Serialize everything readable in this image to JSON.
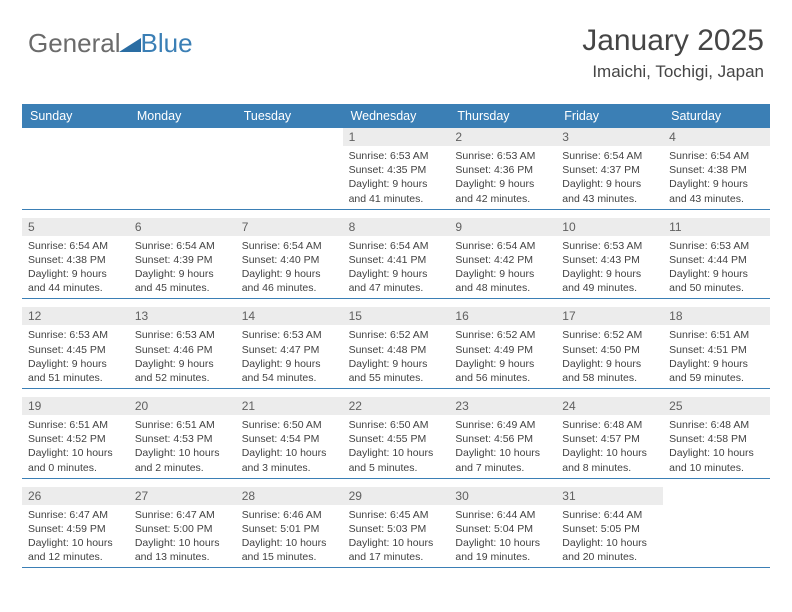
{
  "logo": {
    "text_gray": "General",
    "text_blue": "Blue"
  },
  "title": {
    "month": "January 2025",
    "location": "Imaichi, Tochigi, Japan"
  },
  "colors": {
    "header_bg": "#3b7fb5",
    "header_text": "#ffffff",
    "daynum_bg": "#ececec",
    "daynum_text": "#606060",
    "body_text": "#424242",
    "rule": "#3b7fb5",
    "logo_gray": "#6b6b6b",
    "logo_blue": "#3b7fb5"
  },
  "day_names": [
    "Sunday",
    "Monday",
    "Tuesday",
    "Wednesday",
    "Thursday",
    "Friday",
    "Saturday"
  ],
  "weeks": [
    [
      {
        "n": "",
        "sr": "",
        "ss": "",
        "dl": ""
      },
      {
        "n": "",
        "sr": "",
        "ss": "",
        "dl": ""
      },
      {
        "n": "",
        "sr": "",
        "ss": "",
        "dl": ""
      },
      {
        "n": "1",
        "sr": "6:53 AM",
        "ss": "4:35 PM",
        "dl": "9 hours and 41 minutes."
      },
      {
        "n": "2",
        "sr": "6:53 AM",
        "ss": "4:36 PM",
        "dl": "9 hours and 42 minutes."
      },
      {
        "n": "3",
        "sr": "6:54 AM",
        "ss": "4:37 PM",
        "dl": "9 hours and 43 minutes."
      },
      {
        "n": "4",
        "sr": "6:54 AM",
        "ss": "4:38 PM",
        "dl": "9 hours and 43 minutes."
      }
    ],
    [
      {
        "n": "5",
        "sr": "6:54 AM",
        "ss": "4:38 PM",
        "dl": "9 hours and 44 minutes."
      },
      {
        "n": "6",
        "sr": "6:54 AM",
        "ss": "4:39 PM",
        "dl": "9 hours and 45 minutes."
      },
      {
        "n": "7",
        "sr": "6:54 AM",
        "ss": "4:40 PM",
        "dl": "9 hours and 46 minutes."
      },
      {
        "n": "8",
        "sr": "6:54 AM",
        "ss": "4:41 PM",
        "dl": "9 hours and 47 minutes."
      },
      {
        "n": "9",
        "sr": "6:54 AM",
        "ss": "4:42 PM",
        "dl": "9 hours and 48 minutes."
      },
      {
        "n": "10",
        "sr": "6:53 AM",
        "ss": "4:43 PM",
        "dl": "9 hours and 49 minutes."
      },
      {
        "n": "11",
        "sr": "6:53 AM",
        "ss": "4:44 PM",
        "dl": "9 hours and 50 minutes."
      }
    ],
    [
      {
        "n": "12",
        "sr": "6:53 AM",
        "ss": "4:45 PM",
        "dl": "9 hours and 51 minutes."
      },
      {
        "n": "13",
        "sr": "6:53 AM",
        "ss": "4:46 PM",
        "dl": "9 hours and 52 minutes."
      },
      {
        "n": "14",
        "sr": "6:53 AM",
        "ss": "4:47 PM",
        "dl": "9 hours and 54 minutes."
      },
      {
        "n": "15",
        "sr": "6:52 AM",
        "ss": "4:48 PM",
        "dl": "9 hours and 55 minutes."
      },
      {
        "n": "16",
        "sr": "6:52 AM",
        "ss": "4:49 PM",
        "dl": "9 hours and 56 minutes."
      },
      {
        "n": "17",
        "sr": "6:52 AM",
        "ss": "4:50 PM",
        "dl": "9 hours and 58 minutes."
      },
      {
        "n": "18",
        "sr": "6:51 AM",
        "ss": "4:51 PM",
        "dl": "9 hours and 59 minutes."
      }
    ],
    [
      {
        "n": "19",
        "sr": "6:51 AM",
        "ss": "4:52 PM",
        "dl": "10 hours and 0 minutes."
      },
      {
        "n": "20",
        "sr": "6:51 AM",
        "ss": "4:53 PM",
        "dl": "10 hours and 2 minutes."
      },
      {
        "n": "21",
        "sr": "6:50 AM",
        "ss": "4:54 PM",
        "dl": "10 hours and 3 minutes."
      },
      {
        "n": "22",
        "sr": "6:50 AM",
        "ss": "4:55 PM",
        "dl": "10 hours and 5 minutes."
      },
      {
        "n": "23",
        "sr": "6:49 AM",
        "ss": "4:56 PM",
        "dl": "10 hours and 7 minutes."
      },
      {
        "n": "24",
        "sr": "6:48 AM",
        "ss": "4:57 PM",
        "dl": "10 hours and 8 minutes."
      },
      {
        "n": "25",
        "sr": "6:48 AM",
        "ss": "4:58 PM",
        "dl": "10 hours and 10 minutes."
      }
    ],
    [
      {
        "n": "26",
        "sr": "6:47 AM",
        "ss": "4:59 PM",
        "dl": "10 hours and 12 minutes."
      },
      {
        "n": "27",
        "sr": "6:47 AM",
        "ss": "5:00 PM",
        "dl": "10 hours and 13 minutes."
      },
      {
        "n": "28",
        "sr": "6:46 AM",
        "ss": "5:01 PM",
        "dl": "10 hours and 15 minutes."
      },
      {
        "n": "29",
        "sr": "6:45 AM",
        "ss": "5:03 PM",
        "dl": "10 hours and 17 minutes."
      },
      {
        "n": "30",
        "sr": "6:44 AM",
        "ss": "5:04 PM",
        "dl": "10 hours and 19 minutes."
      },
      {
        "n": "31",
        "sr": "6:44 AM",
        "ss": "5:05 PM",
        "dl": "10 hours and 20 minutes."
      },
      {
        "n": "",
        "sr": "",
        "ss": "",
        "dl": ""
      }
    ]
  ],
  "labels": {
    "sunrise": "Sunrise:",
    "sunset": "Sunset:",
    "daylight": "Daylight:"
  }
}
